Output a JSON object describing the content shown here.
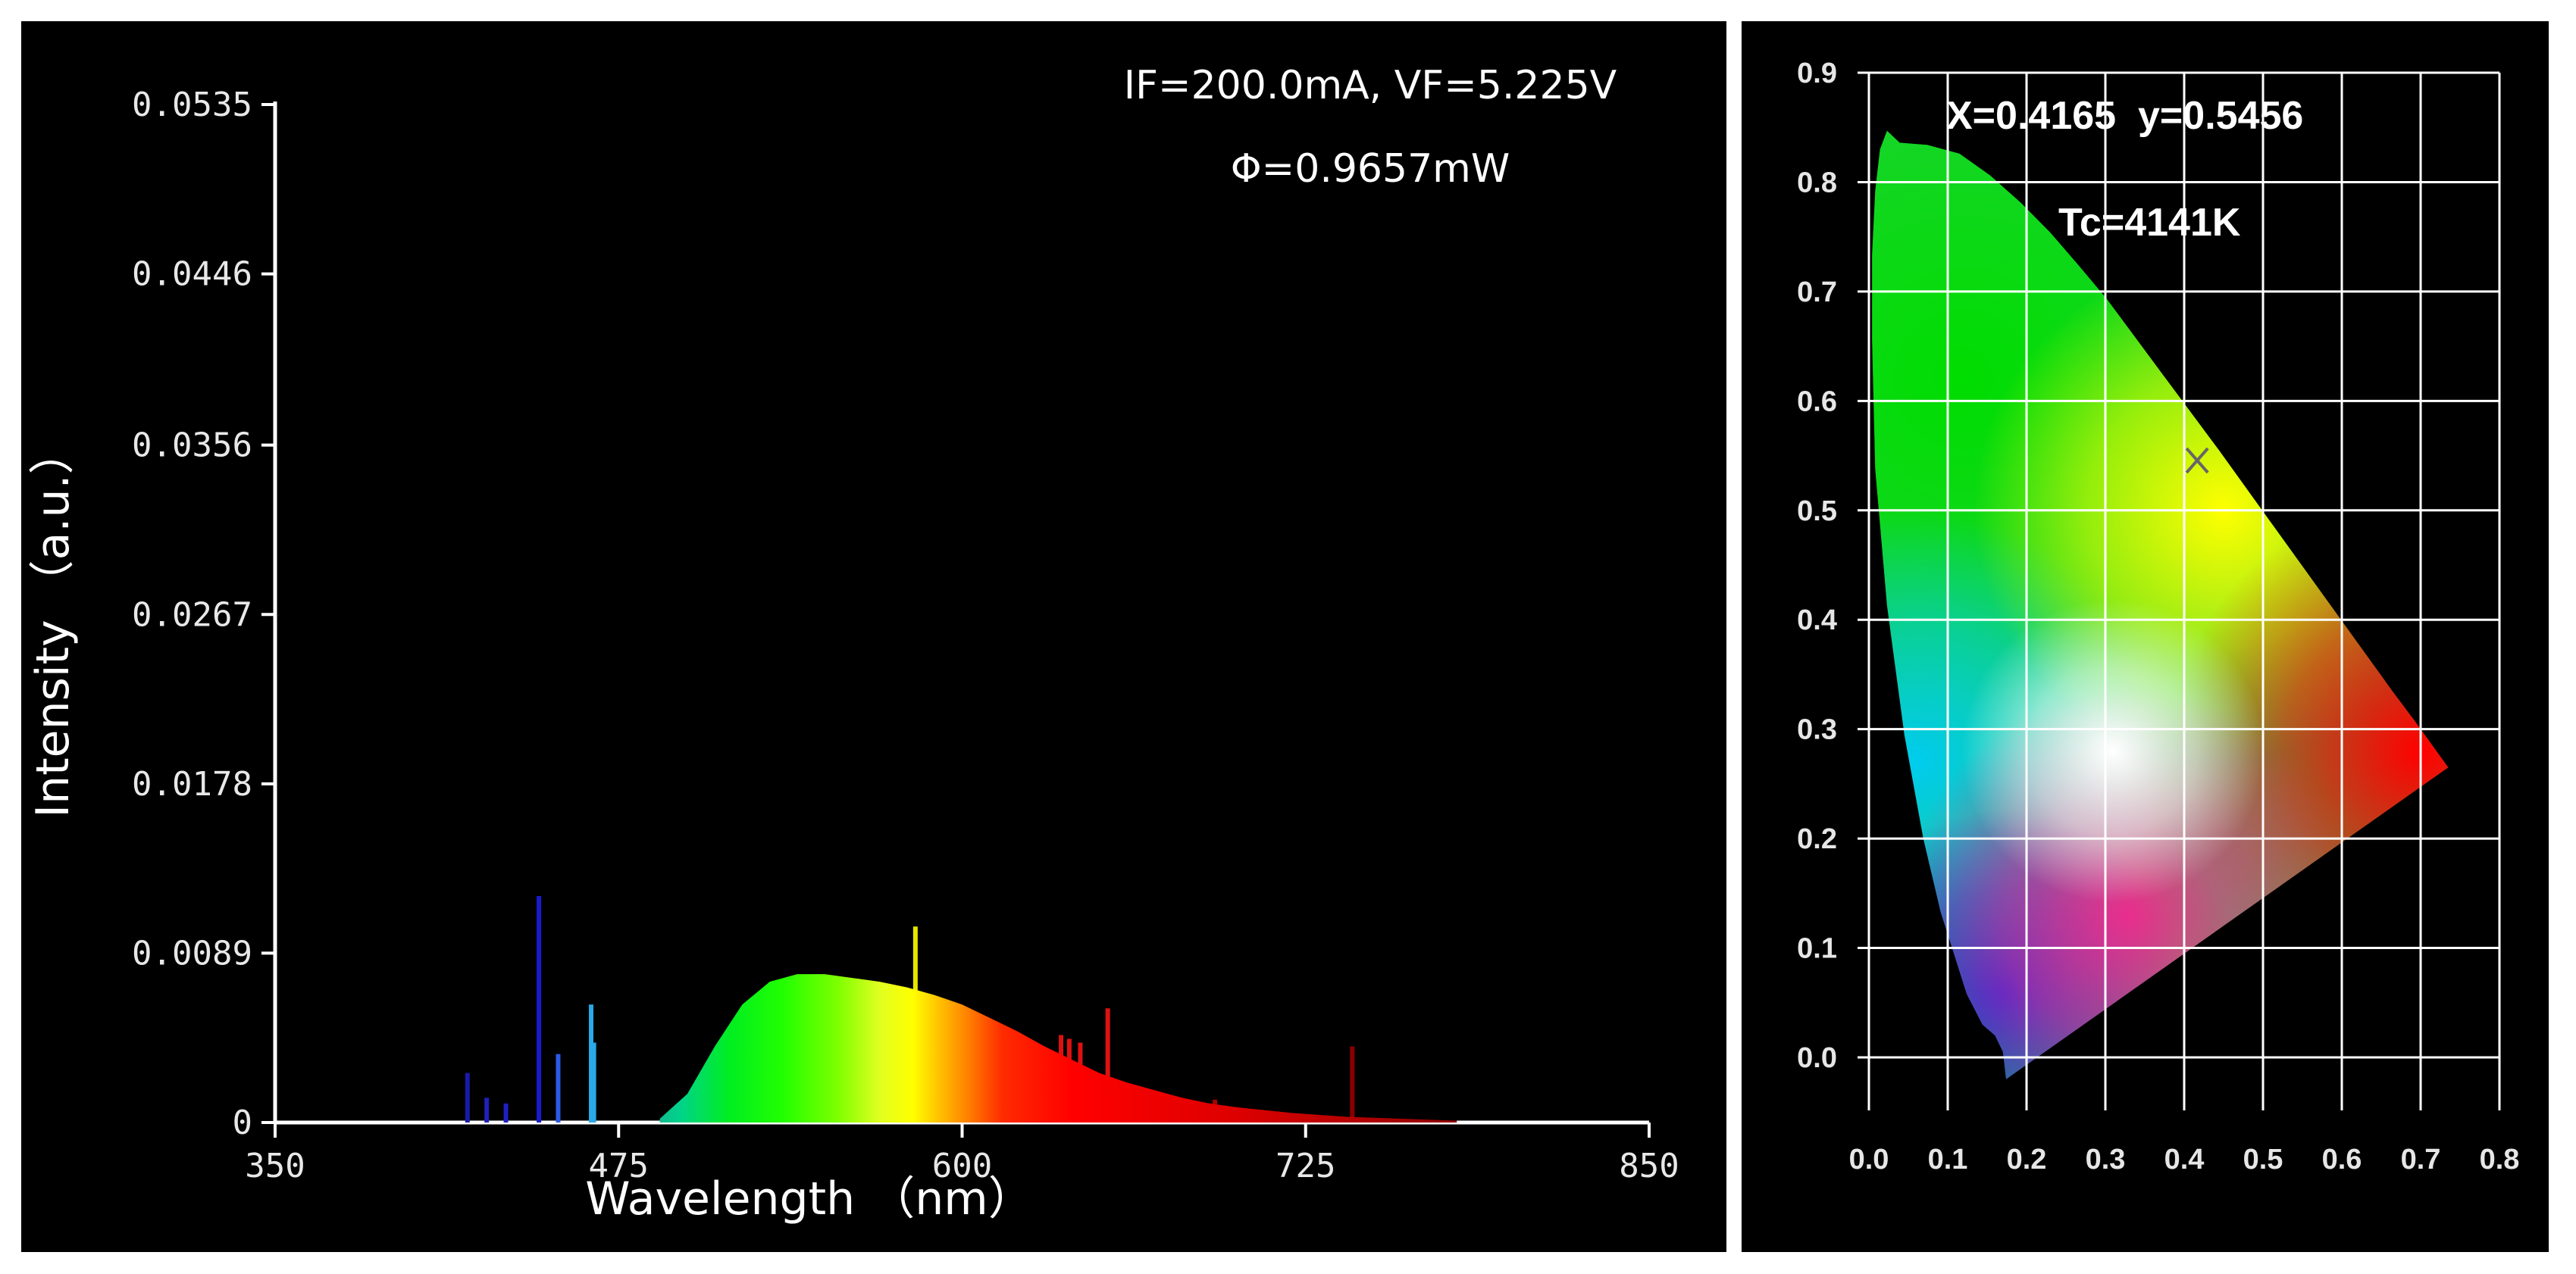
{
  "chart_data": [
    {
      "type": "area",
      "name": "emission-spectrum",
      "xlabel": "Wavelength （nm）",
      "ylabel": "Intensity （a.u.）",
      "xlim": [
        350,
        850
      ],
      "ylim": [
        0,
        0.0535
      ],
      "xticks": [
        "350",
        "475",
        "600",
        "725",
        "850"
      ],
      "yticks": [
        "0",
        "0.0089",
        "0.0178",
        "0.0267",
        "0.0356",
        "0.0446",
        "0.0535"
      ],
      "annotations": [
        "IF=200.0mA, VF=5.225V",
        "Φ=0.9657mW"
      ],
      "grid": false,
      "series": [
        {
          "name": "Spectrum",
          "x": [
            490,
            500,
            510,
            520,
            530,
            540,
            550,
            560,
            570,
            580,
            590,
            600,
            610,
            620,
            630,
            640,
            650,
            660,
            670,
            680,
            690,
            700,
            720,
            740,
            760,
            780
          ],
          "values": [
            0.0002,
            0.0015,
            0.004,
            0.0062,
            0.0074,
            0.0078,
            0.0078,
            0.0076,
            0.0074,
            0.0071,
            0.0067,
            0.0062,
            0.0055,
            0.0048,
            0.004,
            0.0033,
            0.0026,
            0.0021,
            0.0017,
            0.0013,
            0.001,
            0.0008,
            0.0005,
            0.0003,
            0.0002,
            0.0001
          ]
        },
        {
          "name": "Emission lines",
          "x": [
            420,
            427,
            434,
            446,
            453,
            465,
            466,
            583,
            636,
            639,
            643,
            653,
            692,
            742
          ],
          "values": [
            0.0026,
            0.0013,
            0.001,
            0.0119,
            0.0036,
            0.0062,
            0.0042,
            0.0103,
            0.0046,
            0.0044,
            0.0042,
            0.006,
            0.0012,
            0.004
          ],
          "colors": [
            "#1a1aaa",
            "#2020b8",
            "#2020c0",
            "#1a1ad0",
            "#2c5ae8",
            "#2aa8e8",
            "#2aa8e8",
            "#e6e600",
            "#dd1111",
            "#dd1111",
            "#dd1111",
            "#dd1111",
            "#aa0000",
            "#8a0000"
          ]
        }
      ]
    },
    {
      "type": "scatter",
      "name": "cie-chromaticity",
      "xlim": [
        0,
        0.8
      ],
      "ylim": [
        0,
        0.9
      ],
      "xticks": [
        "0.0",
        "0.1",
        "0.2",
        "0.3",
        "0.4",
        "0.5",
        "0.6",
        "0.7",
        "0.8"
      ],
      "yticks": [
        "0.0",
        "0.1",
        "0.2",
        "0.3",
        "0.4",
        "0.5",
        "0.6",
        "0.7",
        "0.8",
        "0.9"
      ],
      "grid": true,
      "annotations": [
        "X=0.4165  y=0.5456",
        "Tc=4141K"
      ],
      "point": {
        "x": 0.4165,
        "y": 0.5456,
        "marker": "×"
      },
      "locus": {
        "x": [
          0.174,
          0.17,
          0.16,
          0.144,
          0.124,
          0.091,
          0.069,
          0.045,
          0.023,
          0.008,
          0.004,
          0.004,
          0.008,
          0.014,
          0.023,
          0.039,
          0.074,
          0.115,
          0.154,
          0.193,
          0.23,
          0.266,
          0.302,
          0.373,
          0.444,
          0.512,
          0.575,
          0.627,
          0.665,
          0.692,
          0.719,
          0.735
        ],
        "y": [
          -0.02,
          0.005,
          0.02,
          0.03,
          0.058,
          0.133,
          0.2,
          0.295,
          0.413,
          0.538,
          0.655,
          0.734,
          0.792,
          0.83,
          0.847,
          0.836,
          0.834,
          0.826,
          0.806,
          0.781,
          0.754,
          0.724,
          0.693,
          0.624,
          0.555,
          0.487,
          0.424,
          0.372,
          0.334,
          0.308,
          0.281,
          0.265
        ]
      }
    }
  ]
}
